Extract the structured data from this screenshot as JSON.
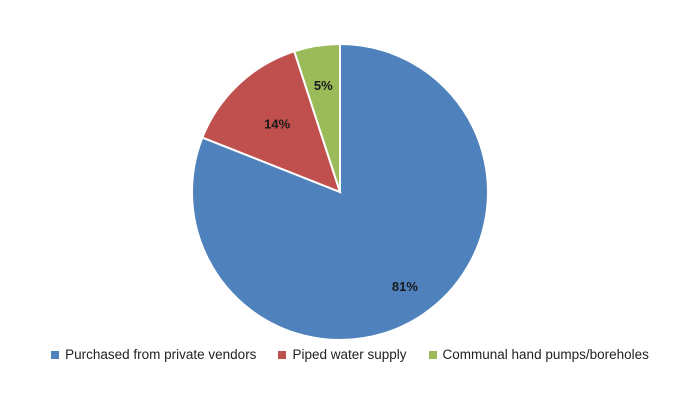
{
  "chart_data": {
    "type": "pie",
    "categories": [
      "Purchased from private vendors",
      "Piped water supply",
      "Communal hand pumps/boreholes"
    ],
    "values": [
      81,
      14,
      5
    ],
    "data_labels": [
      "81%",
      "14%",
      "5%"
    ],
    "colors": [
      "#4f81bd",
      "#c0504d",
      "#9bbb59"
    ],
    "start_angle_deg": 0,
    "direction": "clockwise",
    "legend": "bottom"
  }
}
